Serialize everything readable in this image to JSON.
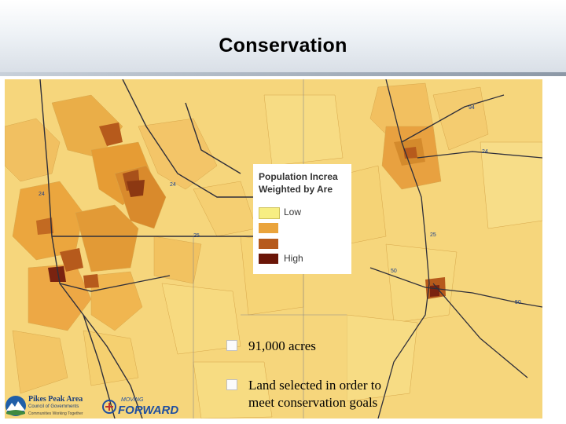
{
  "slide": {
    "title": "Conservation"
  },
  "colors": {
    "low": "#f7e36b",
    "mid1": "#eba637",
    "mid2": "#b8561b",
    "high": "#6b1608",
    "base": "#f5d57a"
  },
  "legend": {
    "title_line1": "Population Increa",
    "title_line2": "Weighted by Are",
    "entries": [
      {
        "label": "Low",
        "color": "#f7ee82"
      },
      {
        "label": "",
        "color": "#eaa43c"
      },
      {
        "label": "",
        "color": "#b65a1c"
      },
      {
        "label": "High",
        "color": "#6b1608"
      }
    ]
  },
  "highway_labels": [
    "24",
    "24",
    "25",
    "94",
    "24",
    "25",
    "50",
    "50"
  ],
  "bullets": [
    {
      "line1": "91,000 acres",
      "line2": ""
    },
    {
      "line1": "Land selected in order to",
      "line2": "meet conservation goals"
    }
  ],
  "logos": {
    "ppacg_name": "Pikes Peak Area",
    "ppacg_sub": "Council of Governments",
    "ppacg_tag": "Communities Working Together",
    "forward_top": "MOVING",
    "forward_main": "FORWARD"
  }
}
